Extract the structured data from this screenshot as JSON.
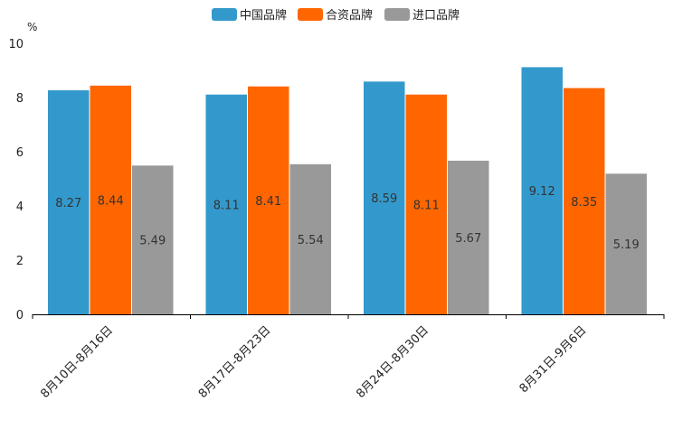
{
  "chart_data": {
    "type": "bar",
    "unit": "%",
    "categories": [
      "8月10日-8月16日",
      "8月17日-8月23日",
      "8月24日-8月30日",
      "8月31日-9月6日"
    ],
    "series": [
      {
        "name": "中国品牌",
        "color": "#3399CC",
        "values": [
          8.27,
          8.11,
          8.59,
          9.12
        ],
        "labels": [
          "8.27",
          "8.11",
          "8.59",
          "9.12"
        ]
      },
      {
        "name": "合资品牌",
        "color": "#FF6600",
        "values": [
          8.44,
          8.41,
          8.11,
          8.35
        ],
        "labels": [
          "8.44",
          "8.41",
          "8.11",
          "8.35"
        ]
      },
      {
        "name": "进口品牌",
        "color": "#999999",
        "values": [
          5.49,
          5.54,
          5.67,
          5.19
        ],
        "labels": [
          "5.49",
          "5.54",
          "5.67",
          "5.19"
        ]
      }
    ],
    "ylim": [
      0,
      10
    ],
    "yticks": [
      "0",
      "2",
      "4",
      "6",
      "8",
      "10"
    ],
    "legend_position": "top-center",
    "grid": false
  }
}
